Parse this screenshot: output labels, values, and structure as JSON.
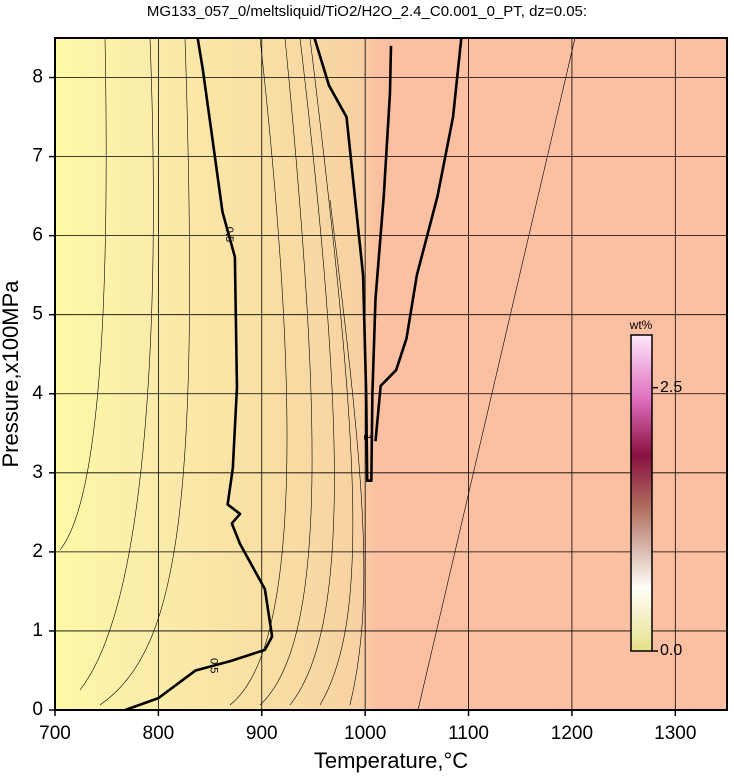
{
  "chart_data": {
    "type": "contour",
    "title": "MG133_057_0/meltsliquid/TiO2/H2O_2.4_C0.001_0_PT, dz=0.05:",
    "x_label": "Temperature,°C",
    "y_label": "Pressure,x100MPa",
    "xlim": [
      700,
      1350
    ],
    "ylim": [
      0,
      8.5
    ],
    "xticks": [
      700,
      800,
      900,
      1000,
      1100,
      1200,
      1300
    ],
    "yticks": [
      0,
      1,
      2,
      3,
      4,
      5,
      6,
      7,
      8
    ],
    "grid": true,
    "contours": [
      {
        "level": 0.5,
        "x": [
          768,
          800,
          836,
          870,
          903,
          910,
          903,
          879,
          871,
          879,
          867,
          872,
          876,
          874,
          862,
          852,
          843,
          838
        ],
        "y": [
          0,
          0.15,
          0.5,
          0.62,
          0.76,
          0.93,
          1.53,
          2.1,
          2.36,
          2.48,
          2.6,
          3.06,
          4.08,
          5.73,
          6.3,
          7.25,
          8.1,
          8.5
        ]
      },
      {
        "level": 1,
        "x": [
          951,
          965,
          982,
          990,
          998,
          1001,
          1002,
          1006,
          1007,
          1010,
          1018,
          1024,
          1025
        ],
        "y": [
          8.5,
          7.9,
          7.5,
          6.5,
          5.5,
          4,
          2.9,
          2.9,
          4,
          5.2,
          6.5,
          7.8,
          8.4
        ]
      },
      {
        "level": 1,
        "x": [
          1010,
          1015,
          1030,
          1040,
          1050,
          1070,
          1085,
          1093
        ],
        "y": [
          3.4,
          4.1,
          4.3,
          4.7,
          5.5,
          6.5,
          7.5,
          8.5
        ]
      }
    ],
    "colorbar": {
      "label": "wt%",
      "clim": [
        0,
        3
      ],
      "ticks": [
        {
          "value": 0,
          "label": "0.0"
        },
        2.5
      ]
    }
  }
}
